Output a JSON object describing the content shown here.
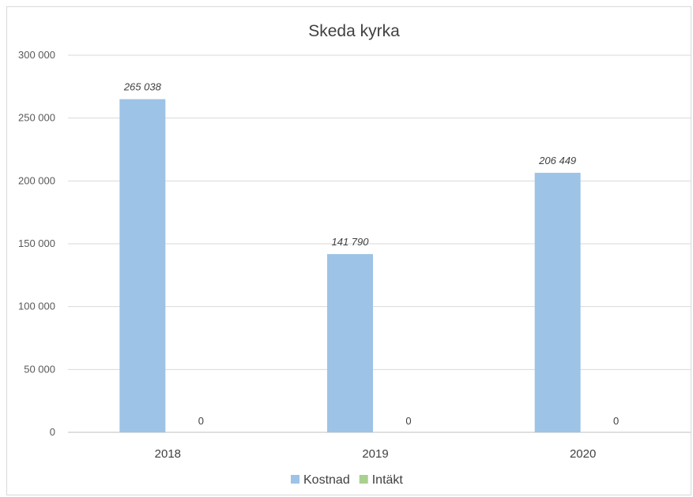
{
  "chart_data": {
    "type": "bar",
    "title": "Skeda kyrka",
    "categories": [
      "2018",
      "2019",
      "2020"
    ],
    "series": [
      {
        "name": "Kostnad",
        "values": [
          265038,
          141790,
          206449
        ],
        "labels": [
          "265 038",
          "141 790",
          "206 449"
        ],
        "color": "#9dc3e6"
      },
      {
        "name": "Intäkt",
        "values": [
          0,
          0,
          0
        ],
        "labels": [
          "0",
          "0",
          "0"
        ],
        "color": "#a9d18e"
      }
    ],
    "ylim": [
      0,
      300000
    ],
    "yticks": [
      0,
      50000,
      100000,
      150000,
      200000,
      250000,
      300000
    ],
    "ytick_labels": [
      "0",
      "50 000",
      "100 000",
      "150 000",
      "200 000",
      "250 000",
      "300 000"
    ],
    "grid": true,
    "legend_position": "bottom",
    "colors": {
      "gridline": "#d9d9d9",
      "axis": "#bfbfbf"
    }
  }
}
